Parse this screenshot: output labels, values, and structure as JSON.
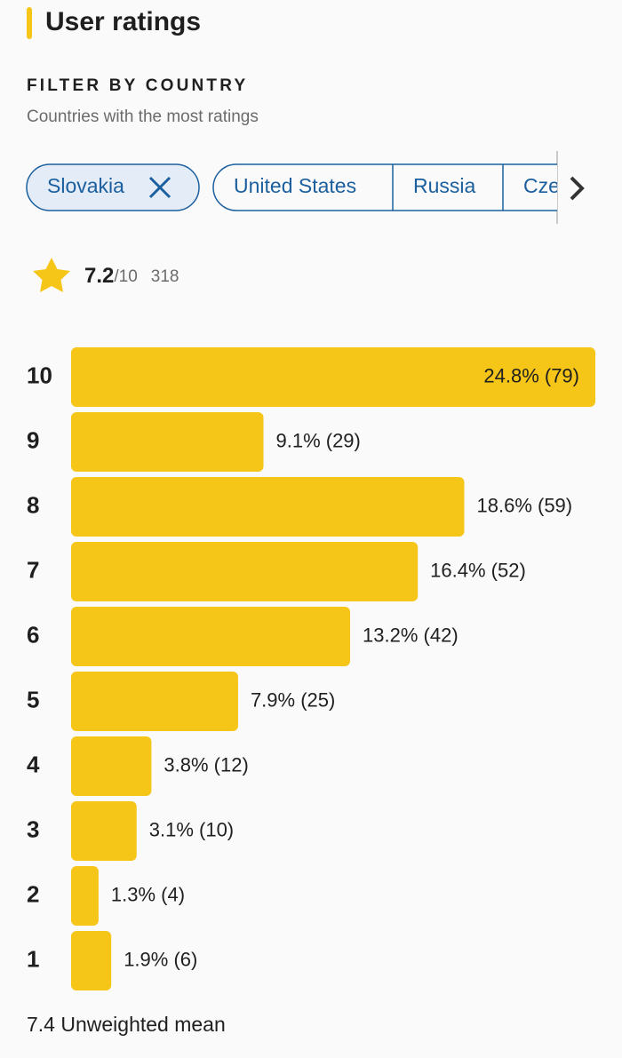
{
  "header": {
    "title": "User ratings"
  },
  "filter": {
    "heading": "FILTER BY COUNTRY",
    "subtitle": "Countries with the most ratings",
    "countries": [
      {
        "label": "Slovakia",
        "selected": true
      },
      {
        "label": "United States",
        "selected": false
      },
      {
        "label": "Russia",
        "selected": false
      },
      {
        "label": "Cze",
        "selected": false
      }
    ]
  },
  "rating": {
    "score": 7.2,
    "scale": "/10",
    "count": 318
  },
  "chart_data": {
    "type": "bar",
    "orientation": "horizontal",
    "color": "#f5c518",
    "categories": [
      "10",
      "9",
      "8",
      "7",
      "6",
      "5",
      "4",
      "3",
      "2",
      "1"
    ],
    "values": [
      24.8,
      9.1,
      18.6,
      16.4,
      13.2,
      7.9,
      3.8,
      3.1,
      1.3,
      1.9
    ],
    "value_labels": [
      "24.8% (79)",
      "9.1% (29)",
      "18.6% (59)",
      "16.4% (52)",
      "13.2% (42)",
      "7.9% (25)",
      "3.8% (12)",
      "3.1% (10)",
      "1.3% (4)",
      "1.9% (6)"
    ]
  },
  "footer": {
    "text": "7.4 Unweighted mean"
  }
}
